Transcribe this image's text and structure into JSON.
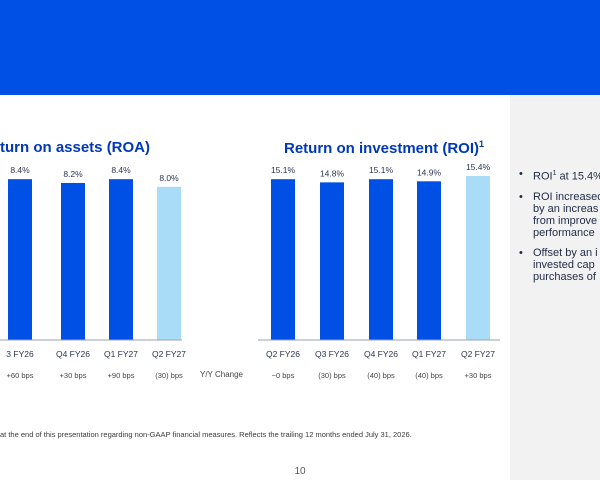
{
  "roa_title": "turn on assets (ROA)",
  "roi_title": "Return on investment (ROI)",
  "roi_title_sup": "1",
  "yoy_label": "Y/Y Change",
  "bullets": [
    {
      "pre": "ROI",
      "sup": "1",
      "post": " at 15.4%"
    },
    {
      "lines": [
        "ROI increased",
        "by an increas",
        "from improve",
        "performance"
      ]
    },
    {
      "lines": [
        "Offset by an i",
        "invested cap",
        "purchases of"
      ]
    }
  ],
  "footnote": "at the end of this presentation regarding non-GAAP financial measures. Reflects the trailing 12 months ended July 31, 2026.",
  "page_number": "10",
  "colors": {
    "banner": "#0050e6",
    "bar": "#0050e6",
    "bar_latest": "#a8dcf7",
    "sidebar": "#f2f2f2"
  },
  "chart_data": [
    {
      "type": "bar",
      "title": "turn on assets (ROA)",
      "categories": [
        "3 FY26",
        "Q4 FY26",
        "Q1 FY27",
        "Q2 FY27"
      ],
      "values": [
        8.4,
        8.2,
        8.4,
        8.0
      ],
      "labels": [
        "8.4%",
        "8.2%",
        "8.4%",
        "8.0%"
      ],
      "yoy": [
        "+60 bps",
        "+30 bps",
        "+90 bps",
        "(30) bps"
      ],
      "ylim": [
        0,
        9.4
      ]
    },
    {
      "type": "bar",
      "title": "Return on investment (ROI)",
      "categories": [
        "Q2 FY26",
        "Q3 FY26",
        "Q4 FY26",
        "Q1 FY27",
        "Q2 FY27"
      ],
      "values": [
        15.1,
        14.8,
        15.1,
        14.9,
        15.4
      ],
      "labels": [
        "15.1%",
        "14.8%",
        "15.1%",
        "14.9%",
        "15.4%"
      ],
      "yoy": [
        "~0 bps",
        "(30) bps",
        "(40) bps",
        "(40) bps",
        "+30 bps"
      ],
      "ylim": [
        0,
        16.9
      ]
    }
  ]
}
